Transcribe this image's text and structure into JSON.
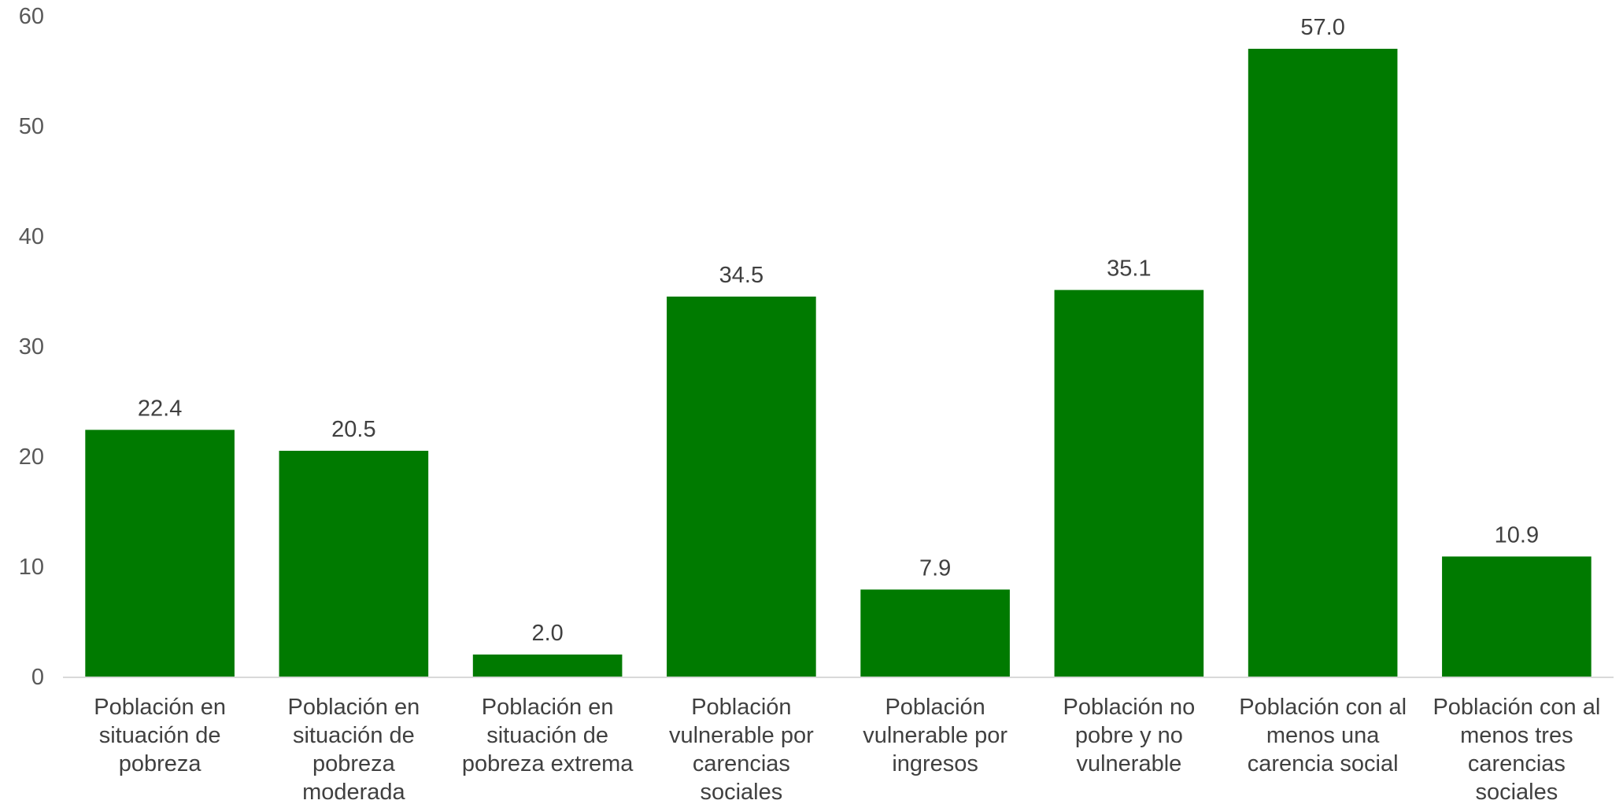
{
  "chart_data": {
    "type": "bar",
    "categories": [
      [
        "Población en",
        "situación de",
        "pobreza"
      ],
      [
        "Población en",
        "situación de",
        "pobreza",
        "moderada"
      ],
      [
        "Población en",
        "situación de",
        "pobreza extrema"
      ],
      [
        "Población",
        "vulnerable por",
        "carencias",
        "sociales"
      ],
      [
        "Población",
        "vulnerable por",
        "ingresos"
      ],
      [
        "Población no",
        "pobre y no",
        "vulnerable"
      ],
      [
        "Población con al",
        "menos una",
        "carencia social"
      ],
      [
        "Población con al",
        "menos tres",
        "carencias",
        "sociales"
      ]
    ],
    "values": [
      22.4,
      20.5,
      2.0,
      34.5,
      7.9,
      35.1,
      57.0,
      10.9
    ],
    "data_labels": [
      "22.4",
      "20.5",
      "2.0",
      "34.5",
      "7.9",
      "35.1",
      "57.0",
      "10.9"
    ],
    "yticks": [
      0,
      10,
      20,
      30,
      40,
      50,
      60
    ],
    "ylim": [
      0,
      60
    ],
    "title": "",
    "xlabel": "",
    "ylabel": "",
    "grid": false,
    "legend": "none",
    "colors": {
      "bar": "#007A00",
      "axis": "#D9D9D9",
      "tick_text": "#595959",
      "label_text": "#404040"
    }
  }
}
